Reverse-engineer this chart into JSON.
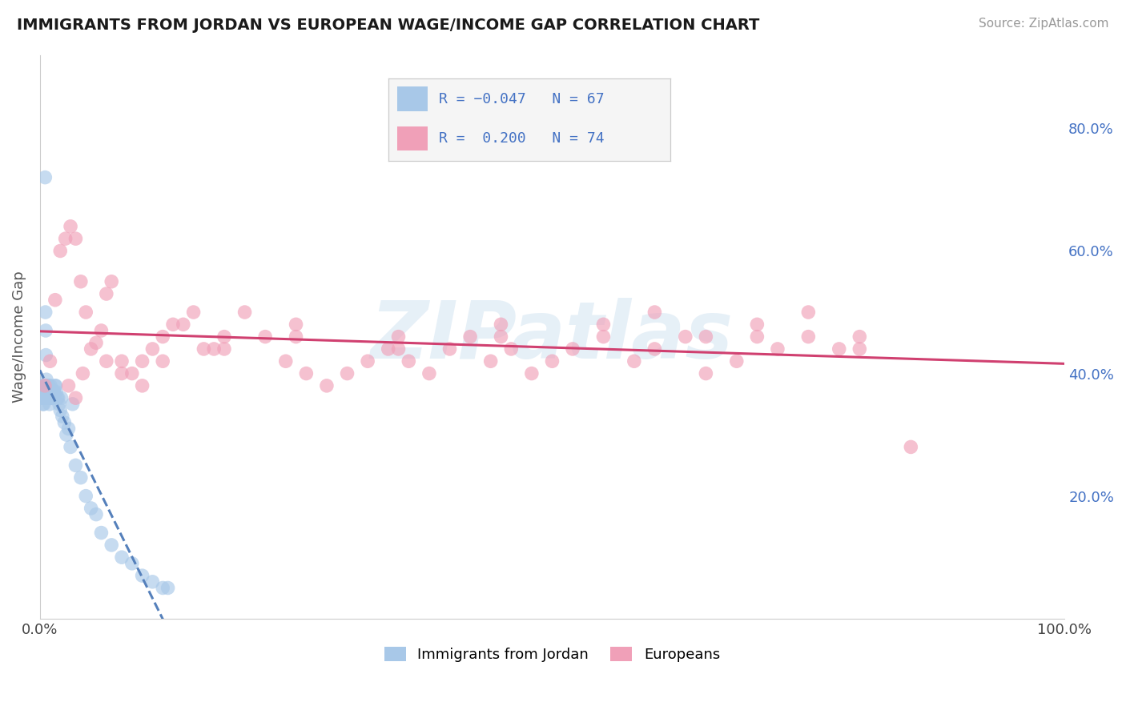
{
  "title": "IMMIGRANTS FROM JORDAN VS EUROPEAN WAGE/INCOME GAP CORRELATION CHART",
  "source": "Source: ZipAtlas.com",
  "ylabel": "Wage/Income Gap",
  "watermark": "ZIPatlas",
  "r_blue": -0.047,
  "n_blue": 67,
  "r_pink": 0.2,
  "n_pink": 74,
  "blue_fill": "#a8c8e8",
  "pink_fill": "#f0a0b8",
  "blue_line": "#5580bb",
  "pink_line": "#d04070",
  "title_color": "#1a1a1a",
  "source_color": "#999999",
  "ylabel_color": "#555555",
  "right_axis_color": "#4472C4",
  "grid_color": "#e0e0e0",
  "bg_color": "#ffffff",
  "legend_bg": "#f5f5f5",
  "legend_border": "#cccccc",
  "right_yticks": [
    0.2,
    0.4,
    0.6,
    0.8
  ],
  "right_ytick_labels": [
    "20.0%",
    "40.0%",
    "60.0%",
    "80.0%"
  ],
  "xlim": [
    0,
    100
  ],
  "ylim": [
    0.0,
    0.92
  ],
  "blue_x": [
    0.2,
    0.22,
    0.25,
    0.28,
    0.3,
    0.32,
    0.35,
    0.38,
    0.4,
    0.42,
    0.45,
    0.48,
    0.5,
    0.52,
    0.55,
    0.58,
    0.6,
    0.62,
    0.65,
    0.68,
    0.7,
    0.72,
    0.75,
    0.78,
    0.8,
    0.82,
    0.85,
    0.88,
    0.9,
    0.92,
    0.95,
    0.98,
    1.0,
    1.05,
    1.1,
    1.15,
    1.2,
    1.3,
    1.4,
    1.5,
    1.6,
    1.7,
    1.8,
    1.9,
    2.0,
    2.2,
    2.4,
    2.6,
    2.8,
    3.0,
    3.5,
    4.0,
    4.5,
    5.0,
    5.5,
    6.0,
    7.0,
    8.0,
    9.0,
    10.0,
    11.0,
    12.0,
    3.2,
    2.1,
    1.35,
    1.55,
    12.5
  ],
  "blue_y": [
    0.38,
    0.36,
    0.37,
    0.36,
    0.35,
    0.36,
    0.37,
    0.38,
    0.35,
    0.36,
    0.37,
    0.36,
    0.38,
    0.72,
    0.5,
    0.47,
    0.43,
    0.38,
    0.39,
    0.37,
    0.36,
    0.37,
    0.36,
    0.38,
    0.37,
    0.38,
    0.37,
    0.36,
    0.38,
    0.36,
    0.35,
    0.37,
    0.36,
    0.38,
    0.37,
    0.36,
    0.37,
    0.36,
    0.37,
    0.38,
    0.37,
    0.36,
    0.36,
    0.35,
    0.34,
    0.33,
    0.32,
    0.3,
    0.31,
    0.28,
    0.25,
    0.23,
    0.2,
    0.18,
    0.17,
    0.14,
    0.12,
    0.1,
    0.09,
    0.07,
    0.06,
    0.05,
    0.35,
    0.36,
    0.37,
    0.38,
    0.05
  ],
  "pink_x": [
    0.5,
    1.0,
    1.5,
    2.0,
    2.5,
    3.0,
    3.5,
    4.0,
    4.5,
    5.0,
    5.5,
    6.0,
    6.5,
    7.0,
    8.0,
    9.0,
    10.0,
    11.0,
    12.0,
    13.0,
    14.0,
    15.0,
    17.0,
    18.0,
    20.0,
    22.0,
    24.0,
    26.0,
    28.0,
    30.0,
    32.0,
    34.0,
    36.0,
    38.0,
    40.0,
    42.0,
    44.0,
    46.0,
    48.0,
    50.0,
    52.0,
    55.0,
    58.0,
    60.0,
    63.0,
    65.0,
    68.0,
    70.0,
    72.0,
    75.0,
    78.0,
    80.0,
    2.8,
    4.2,
    6.5,
    10.0,
    16.0,
    25.0,
    35.0,
    45.0,
    55.0,
    65.0,
    75.0,
    3.5,
    8.0,
    12.0,
    18.0,
    25.0,
    35.0,
    45.0,
    60.0,
    70.0,
    80.0,
    85.0
  ],
  "pink_y": [
    0.38,
    0.42,
    0.52,
    0.6,
    0.62,
    0.64,
    0.62,
    0.55,
    0.5,
    0.44,
    0.45,
    0.47,
    0.53,
    0.55,
    0.42,
    0.4,
    0.42,
    0.44,
    0.46,
    0.48,
    0.48,
    0.5,
    0.44,
    0.46,
    0.5,
    0.46,
    0.42,
    0.4,
    0.38,
    0.4,
    0.42,
    0.44,
    0.42,
    0.4,
    0.44,
    0.46,
    0.42,
    0.44,
    0.4,
    0.42,
    0.44,
    0.46,
    0.42,
    0.44,
    0.46,
    0.4,
    0.42,
    0.46,
    0.44,
    0.46,
    0.44,
    0.46,
    0.38,
    0.4,
    0.42,
    0.38,
    0.44,
    0.46,
    0.44,
    0.46,
    0.48,
    0.46,
    0.5,
    0.36,
    0.4,
    0.42,
    0.44,
    0.48,
    0.46,
    0.48,
    0.5,
    0.48,
    0.44,
    0.28
  ]
}
